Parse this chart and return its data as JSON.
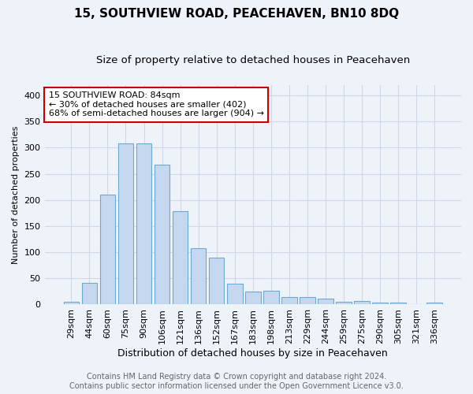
{
  "title": "15, SOUTHVIEW ROAD, PEACEHAVEN, BN10 8DQ",
  "subtitle": "Size of property relative to detached houses in Peacehaven",
  "xlabel": "Distribution of detached houses by size in Peacehaven",
  "ylabel": "Number of detached properties",
  "categories": [
    "29sqm",
    "44sqm",
    "60sqm",
    "75sqm",
    "90sqm",
    "106sqm",
    "121sqm",
    "136sqm",
    "152sqm",
    "167sqm",
    "183sqm",
    "198sqm",
    "213sqm",
    "229sqm",
    "244sqm",
    "259sqm",
    "275sqm",
    "290sqm",
    "305sqm",
    "321sqm",
    "336sqm"
  ],
  "values": [
    5,
    42,
    210,
    308,
    308,
    268,
    178,
    107,
    90,
    40,
    25,
    27,
    15,
    15,
    11,
    5,
    6,
    3,
    4,
    0,
    4
  ],
  "bar_color": "#c5d8f0",
  "bar_edge_color": "#6aaad4",
  "annotation_text": "15 SOUTHVIEW ROAD: 84sqm\n← 30% of detached houses are smaller (402)\n68% of semi-detached houses are larger (904) →",
  "annotation_box_color": "#ffffff",
  "annotation_box_edge_color": "#cc0000",
  "background_color": "#eef2f9",
  "grid_color": "#d0d8e8",
  "footer_line1": "Contains HM Land Registry data © Crown copyright and database right 2024.",
  "footer_line2": "Contains public sector information licensed under the Open Government Licence v3.0.",
  "ylim": [
    0,
    420
  ],
  "yticks": [
    0,
    50,
    100,
    150,
    200,
    250,
    300,
    350,
    400
  ],
  "title_fontsize": 11,
  "subtitle_fontsize": 9.5,
  "xlabel_fontsize": 9,
  "ylabel_fontsize": 8,
  "tick_fontsize": 8,
  "annotation_fontsize": 8,
  "footer_fontsize": 7,
  "bar_width": 0.85
}
